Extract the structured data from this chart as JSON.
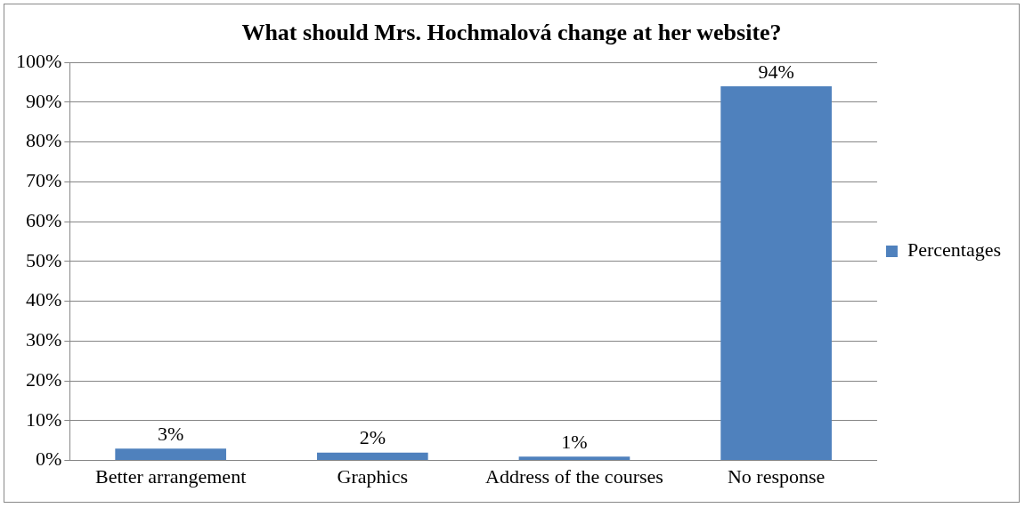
{
  "chart_data": {
    "type": "bar",
    "title": "What should Mrs. Hochmalová change at her website?",
    "categories": [
      "Better arrangement",
      "Graphics",
      "Address of the courses",
      "No response"
    ],
    "series": [
      {
        "name": "Percentages",
        "color": "#4f81bd",
        "values": [
          3,
          2,
          1,
          94
        ],
        "value_labels": [
          "3%",
          "2%",
          "1%",
          "94%"
        ]
      }
    ],
    "ylim": [
      0,
      100
    ],
    "yticks": [
      {
        "value": 0,
        "label": "0%"
      },
      {
        "value": 10,
        "label": "10%"
      },
      {
        "value": 20,
        "label": "20%"
      },
      {
        "value": 30,
        "label": "30%"
      },
      {
        "value": 40,
        "label": "40%"
      },
      {
        "value": 50,
        "label": "50%"
      },
      {
        "value": 60,
        "label": "60%"
      },
      {
        "value": 70,
        "label": "70%"
      },
      {
        "value": 80,
        "label": "80%"
      },
      {
        "value": 90,
        "label": "90%"
      },
      {
        "value": 100,
        "label": "100%"
      }
    ],
    "grid": "y",
    "legend": "right"
  }
}
